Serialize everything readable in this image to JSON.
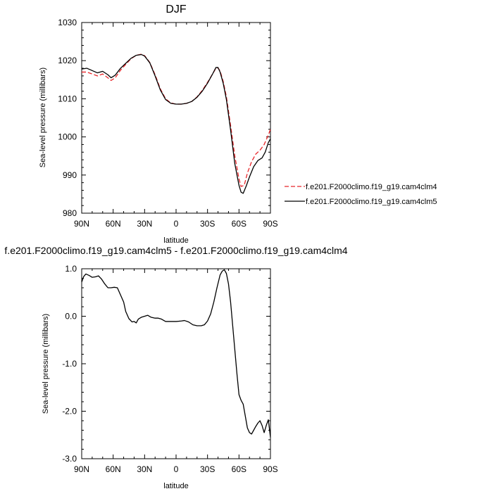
{
  "chart_data": [
    {
      "type": "line",
      "title": "DJF",
      "xlabel": "latitude",
      "ylabel": "Sea-level pressure (millibars)",
      "xlim": [
        90,
        -90
      ],
      "ylim": [
        980,
        1030
      ],
      "xticks": [
        {
          "v": 90,
          "label": "90N"
        },
        {
          "v": 60,
          "label": "60N"
        },
        {
          "v": 30,
          "label": "30N"
        },
        {
          "v": 0,
          "label": "0"
        },
        {
          "v": -30,
          "label": "30S"
        },
        {
          "v": -60,
          "label": "60S"
        },
        {
          "v": -90,
          "label": "90S"
        }
      ],
      "yticks": [
        {
          "v": 980,
          "label": "980"
        },
        {
          "v": 990,
          "label": "990"
        },
        {
          "v": 1000,
          "label": "1000"
        },
        {
          "v": 1010,
          "label": "1010"
        },
        {
          "v": 1020,
          "label": "1020"
        },
        {
          "v": 1030,
          "label": "1030"
        }
      ],
      "legend_position": "right",
      "series": [
        {
          "name": "f.e201.F2000climo.f19_g19.cam4clm4",
          "color": "#e8262a",
          "dash": "dashed",
          "points": [
            [
              90,
              1017.0
            ],
            [
              85,
              1017.0
            ],
            [
              80,
              1016.5
            ],
            [
              75,
              1016.0
            ],
            [
              70,
              1016.5
            ],
            [
              65,
              1015.5
            ],
            [
              62,
              1014.8
            ],
            [
              58,
              1015.5
            ],
            [
              53,
              1017.5
            ],
            [
              48,
              1019.0
            ],
            [
              43,
              1020.5
            ],
            [
              38,
              1021.4
            ],
            [
              33,
              1021.7
            ],
            [
              30,
              1021.3
            ],
            [
              25,
              1019.5
            ],
            [
              20,
              1016.3
            ],
            [
              15,
              1012.6
            ],
            [
              10,
              1010.0
            ],
            [
              5,
              1008.9
            ],
            [
              0,
              1008.6
            ],
            [
              -5,
              1008.6
            ],
            [
              -10,
              1008.8
            ],
            [
              -15,
              1009.3
            ],
            [
              -20,
              1010.5
            ],
            [
              -25,
              1012.2
            ],
            [
              -30,
              1014.3
            ],
            [
              -35,
              1016.6
            ],
            [
              -38,
              1018.0
            ],
            [
              -40,
              1018.1
            ],
            [
              -42,
              1017.3
            ],
            [
              -45,
              1014.5
            ],
            [
              -48,
              1010.5
            ],
            [
              -52,
              1003.0
            ],
            [
              -56,
              995.0
            ],
            [
              -60,
              989.0
            ],
            [
              -62,
              987.0
            ],
            [
              -65,
              987.3
            ],
            [
              -68,
              990.5
            ],
            [
              -72,
              993.5
            ],
            [
              -76,
              995.5
            ],
            [
              -80,
              996.5
            ],
            [
              -84,
              998.0
            ],
            [
              -88,
              1000.5
            ],
            [
              -90,
              1002.0
            ]
          ]
        },
        {
          "name": "f.e201.F2000climo.f19_g19.cam4clm5",
          "color": "#000000",
          "dash": "solid",
          "points": [
            [
              90,
              1017.8
            ],
            [
              85,
              1018.0
            ],
            [
              80,
              1017.4
            ],
            [
              75,
              1016.8
            ],
            [
              70,
              1017.2
            ],
            [
              65,
              1016.3
            ],
            [
              62,
              1015.5
            ],
            [
              58,
              1016.2
            ],
            [
              53,
              1018.0
            ],
            [
              48,
              1019.3
            ],
            [
              43,
              1020.6
            ],
            [
              38,
              1021.4
            ],
            [
              33,
              1021.6
            ],
            [
              30,
              1021.2
            ],
            [
              25,
              1019.4
            ],
            [
              20,
              1016.0
            ],
            [
              15,
              1012.3
            ],
            [
              10,
              1009.8
            ],
            [
              5,
              1008.8
            ],
            [
              0,
              1008.6
            ],
            [
              -5,
              1008.6
            ],
            [
              -10,
              1008.8
            ],
            [
              -15,
              1009.3
            ],
            [
              -20,
              1010.4
            ],
            [
              -25,
              1012.0
            ],
            [
              -30,
              1014.1
            ],
            [
              -35,
              1016.6
            ],
            [
              -38,
              1018.2
            ],
            [
              -40,
              1018.2
            ],
            [
              -42,
              1017.0
            ],
            [
              -45,
              1014.0
            ],
            [
              -48,
              1009.8
            ],
            [
              -52,
              1001.8
            ],
            [
              -56,
              993.0
            ],
            [
              -60,
              987.3
            ],
            [
              -62,
              985.5
            ],
            [
              -64,
              985.2
            ],
            [
              -67,
              987.2
            ],
            [
              -70,
              989.5
            ],
            [
              -74,
              992.2
            ],
            [
              -78,
              993.8
            ],
            [
              -82,
              994.5
            ],
            [
              -85,
              996.0
            ],
            [
              -88,
              998.5
            ],
            [
              -90,
              999.5
            ]
          ]
        }
      ]
    },
    {
      "type": "line",
      "title": "f.e201.F2000climo.f19_g19.cam4clm5 - f.e201.F2000climo.f19_g19.cam4clm4",
      "xlabel": "latitude",
      "ylabel": "Sea-level pressure (millibars)",
      "xlim": [
        90,
        -90
      ],
      "ylim": [
        -3.0,
        1.0
      ],
      "xticks": [
        {
          "v": 90,
          "label": "90N"
        },
        {
          "v": 60,
          "label": "60N"
        },
        {
          "v": 30,
          "label": "30N"
        },
        {
          "v": 0,
          "label": "0"
        },
        {
          "v": -30,
          "label": "30S"
        },
        {
          "v": -60,
          "label": "60S"
        },
        {
          "v": -90,
          "label": "90S"
        }
      ],
      "yticks": [
        {
          "v": 1.0,
          "label": "1.0"
        },
        {
          "v": 0.0,
          "label": "0.0"
        },
        {
          "v": -1.0,
          "label": "-1.0"
        },
        {
          "v": -2.0,
          "label": "-2.0"
        },
        {
          "v": -3.0,
          "label": "-3.0"
        }
      ],
      "series": [
        {
          "color": "#000000",
          "dash": "solid",
          "points": [
            [
              90,
              0.72
            ],
            [
              88,
              0.84
            ],
            [
              86,
              0.89
            ],
            [
              83,
              0.86
            ],
            [
              80,
              0.82
            ],
            [
              77,
              0.83
            ],
            [
              74,
              0.85
            ],
            [
              71,
              0.78
            ],
            [
              68,
              0.68
            ],
            [
              65,
              0.6
            ],
            [
              62,
              0.6
            ],
            [
              59,
              0.61
            ],
            [
              56,
              0.6
            ],
            [
              53,
              0.45
            ],
            [
              50,
              0.3
            ],
            [
              48,
              0.1
            ],
            [
              45,
              -0.05
            ],
            [
              42,
              -0.12
            ],
            [
              40,
              -0.11
            ],
            [
              38,
              -0.14
            ],
            [
              36,
              -0.06
            ],
            [
              33,
              -0.02
            ],
            [
              30,
              0.0
            ],
            [
              27,
              0.02
            ],
            [
              24,
              -0.02
            ],
            [
              20,
              -0.04
            ],
            [
              17,
              -0.04
            ],
            [
              14,
              -0.06
            ],
            [
              10,
              -0.11
            ],
            [
              5,
              -0.11
            ],
            [
              0,
              -0.11
            ],
            [
              -5,
              -0.1
            ],
            [
              -8,
              -0.09
            ],
            [
              -12,
              -0.12
            ],
            [
              -16,
              -0.18
            ],
            [
              -20,
              -0.2
            ],
            [
              -24,
              -0.2
            ],
            [
              -27,
              -0.18
            ],
            [
              -30,
              -0.1
            ],
            [
              -33,
              0.05
            ],
            [
              -36,
              0.3
            ],
            [
              -39,
              0.6
            ],
            [
              -42,
              0.87
            ],
            [
              -44,
              0.95
            ],
            [
              -46,
              0.98
            ],
            [
              -48,
              0.9
            ],
            [
              -50,
              0.68
            ],
            [
              -52,
              0.3
            ],
            [
              -54,
              -0.2
            ],
            [
              -56,
              -0.7
            ],
            [
              -58,
              -1.2
            ],
            [
              -60,
              -1.65
            ],
            [
              -62,
              -1.77
            ],
            [
              -64,
              -1.85
            ],
            [
              -66,
              -2.1
            ],
            [
              -68,
              -2.35
            ],
            [
              -70,
              -2.45
            ],
            [
              -72,
              -2.48
            ],
            [
              -74,
              -2.4
            ],
            [
              -76,
              -2.32
            ],
            [
              -78,
              -2.25
            ],
            [
              -80,
              -2.2
            ],
            [
              -82,
              -2.3
            ],
            [
              -84,
              -2.45
            ],
            [
              -86,
              -2.3
            ],
            [
              -88,
              -2.18
            ],
            [
              -90,
              -2.55
            ]
          ]
        }
      ]
    }
  ]
}
